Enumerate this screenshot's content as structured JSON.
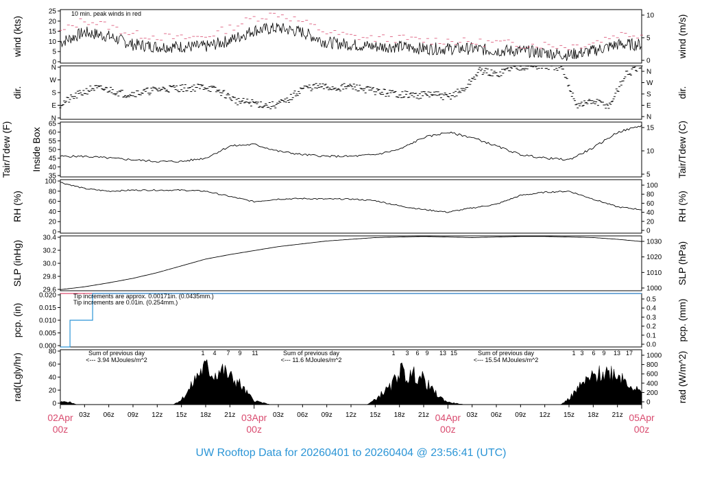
{
  "title": "UW Rooftop Data for 20260401  to  20260404 @ 23:56:41  (UTC)",
  "colors": {
    "title": "#2b95d6",
    "peak": "#d94a6e",
    "date": "#d94a6e",
    "purple": "#a020f0",
    "blue": "#2b95d6",
    "line": "#000000"
  },
  "x_axis": {
    "hour_ticks": [
      "03z",
      "06z",
      "09z",
      "12z",
      "15z",
      "18z",
      "21z",
      "03z",
      "06z",
      "09z",
      "12z",
      "15z",
      "18z",
      "21z",
      "03z",
      "06z",
      "09z",
      "12z",
      "15z",
      "18z",
      "21z"
    ],
    "date_labels": [
      {
        "date": "02Apr",
        "time": "00z"
      },
      {
        "date": "03Apr",
        "time": "00z"
      },
      {
        "date": "04Apr",
        "time": "00z"
      },
      {
        "date": "05Apr",
        "time": "00z"
      }
    ]
  },
  "chart_data": [
    {
      "id": "wind",
      "type": "line",
      "ylabel": "wind (kts)",
      "y2label": "wind (m/s)",
      "ylim": [
        0,
        26
      ],
      "yticks": [
        "0",
        "5",
        "10",
        "15",
        "20",
        "25"
      ],
      "y2ticks": [
        "0",
        "5",
        "10"
      ],
      "annotation": "10 min. peak winds in red",
      "series": [
        {
          "name": "wind",
          "color": "#000000",
          "x": [
            0,
            3,
            6,
            9,
            12,
            15,
            18,
            21,
            24,
            27,
            30,
            33,
            36,
            39,
            42,
            45,
            48,
            51,
            54,
            57,
            60,
            63,
            66,
            69,
            72
          ],
          "y": [
            10,
            15,
            13,
            9,
            8,
            8,
            8,
            11,
            16,
            17,
            15,
            10,
            9,
            8,
            8,
            7,
            7,
            7,
            6,
            6,
            5,
            4,
            6,
            9,
            9
          ]
        },
        {
          "name": "peak",
          "color": "#d94a6e",
          "x": [
            0,
            3,
            6,
            9,
            12,
            15,
            18,
            21,
            24,
            27,
            30,
            33,
            36,
            39,
            42,
            45,
            48,
            51,
            54,
            57,
            60,
            63,
            66,
            69,
            72
          ],
          "y": [
            15,
            21,
            18,
            14,
            13,
            12,
            13,
            17,
            22,
            24,
            20,
            15,
            13,
            12,
            12,
            11,
            11,
            10,
            10,
            9,
            9,
            8,
            10,
            14,
            14
          ]
        }
      ]
    },
    {
      "id": "dir",
      "type": "scatter",
      "ylabel": "dir.",
      "y2label": "dir.",
      "ylim": [
        0,
        360
      ],
      "yticks": [
        "N",
        "E",
        "S",
        "W",
        "N"
      ],
      "y2ticks": [
        "N",
        "E",
        "S",
        "W",
        "N"
      ],
      "series": [
        {
          "name": "direction",
          "x": [
            0,
            2,
            4,
            6,
            8,
            10,
            12,
            14,
            16,
            18,
            20,
            22,
            24,
            26,
            28,
            30,
            32,
            34,
            36,
            38,
            40,
            42,
            44,
            46,
            48,
            50,
            52,
            54,
            56,
            58,
            60,
            62,
            64,
            66,
            68,
            70,
            72
          ],
          "y": [
            100,
            160,
            210,
            200,
            170,
            180,
            200,
            210,
            210,
            220,
            180,
            120,
            110,
            90,
            120,
            210,
            220,
            210,
            220,
            200,
            180,
            170,
            160,
            170,
            150,
            200,
            330,
            300,
            350,
            360,
            355,
            350,
            95,
            120,
            90,
            300,
            355
          ]
        }
      ]
    },
    {
      "id": "temp",
      "type": "line",
      "ylabel": "Inside Box",
      "ylabel2": "Tair/Tdew (F)",
      "y2label": "Tair/Tdew (C)",
      "ylim": [
        35,
        67
      ],
      "yticks": [
        "35",
        "40",
        "45",
        "50",
        "55",
        "60",
        "65"
      ],
      "y2ticks": [
        "5",
        "10",
        "15"
      ],
      "series": [
        {
          "name": "air temperature",
          "color": "#000000",
          "x": [
            0,
            3,
            6,
            9,
            12,
            15,
            18,
            21,
            24,
            27,
            30,
            33,
            36,
            39,
            42,
            45,
            48,
            51,
            54,
            57,
            60,
            63,
            66,
            69,
            72
          ],
          "y": [
            47,
            47,
            46,
            45,
            44,
            44,
            46,
            53,
            54,
            50,
            48,
            47,
            47,
            48,
            51,
            58,
            61,
            58,
            53,
            48,
            46,
            45,
            52,
            61,
            65
          ]
        }
      ]
    },
    {
      "id": "rh",
      "type": "line",
      "ylabel": "RH (%)",
      "y2label": "RH (%)",
      "ylim": [
        0,
        102
      ],
      "yticks": [
        "0",
        "20",
        "40",
        "60",
        "80",
        "100"
      ],
      "y2ticks": [
        "0",
        "20",
        "40",
        "60",
        "80",
        "100"
      ],
      "series": [
        {
          "name": "relative humidity",
          "color": "#000000",
          "x": [
            0,
            3,
            6,
            9,
            12,
            15,
            18,
            21,
            24,
            27,
            30,
            33,
            36,
            39,
            42,
            45,
            48,
            51,
            54,
            57,
            60,
            63,
            66,
            69,
            72
          ],
          "y": [
            97,
            85,
            80,
            82,
            82,
            82,
            80,
            70,
            60,
            65,
            66,
            65,
            65,
            62,
            52,
            45,
            40,
            48,
            55,
            72,
            78,
            80,
            65,
            50,
            45
          ]
        }
      ]
    },
    {
      "id": "slp",
      "type": "line",
      "ylabel": "SLP (inHg)",
      "y2label": "SLP (hPa)",
      "ylim": [
        29.5,
        30.47
      ],
      "yticks": [
        "29.6",
        "29.8",
        "30.0",
        "30.2",
        "30.4"
      ],
      "y2ticks": [
        "1000",
        "1010",
        "1020",
        "1030"
      ],
      "series": [
        {
          "name": "pressure",
          "color": "#000000",
          "x": [
            0,
            3,
            6,
            9,
            12,
            15,
            18,
            21,
            24,
            27,
            30,
            33,
            36,
            39,
            42,
            45,
            48,
            51,
            54,
            57,
            60,
            63,
            66,
            69,
            72
          ],
          "y": [
            29.52,
            29.57,
            29.64,
            29.72,
            29.82,
            29.94,
            30.06,
            30.14,
            30.21,
            30.28,
            30.33,
            30.38,
            30.41,
            30.44,
            30.45,
            30.46,
            30.45,
            30.44,
            30.45,
            30.46,
            30.46,
            30.45,
            30.44,
            30.41,
            30.37
          ]
        }
      ]
    },
    {
      "id": "pcp",
      "type": "line",
      "ylabel": "pcp. (in)",
      "y2label": "pcp. (mm)",
      "ylim": [
        0,
        0.02
      ],
      "yticks": [
        "0.000",
        "0.005",
        "0.010",
        "0.015",
        "0.020"
      ],
      "y2ticks": [
        "0.0",
        "0.1",
        "0.2",
        "0.3",
        "0.4",
        "0.5"
      ],
      "annotations": [
        "Tip increments are approx. 0.00171in. (0.0435mm.)",
        "Tip increments are 0.01in. (0.254mm.)"
      ],
      "series": [
        {
          "name": "precipitation 0.00171in",
          "color": "#d94a6e",
          "x": [
            0,
            72
          ],
          "y": [
            0.02,
            0.02
          ]
        },
        {
          "name": "precipitation 0.01in",
          "color": "#2b95d6",
          "x": [
            0,
            1.2,
            1.2,
            4,
            4,
            72
          ],
          "y": [
            0,
            0,
            0.01,
            0.01,
            0.02,
            0.02
          ]
        }
      ]
    },
    {
      "id": "rad",
      "type": "area",
      "ylabel": "rad(Lgly/hr)",
      "y2label": "rad (W/m^2)",
      "ylim": [
        0,
        88
      ],
      "yticks": [
        "0",
        "20",
        "40",
        "60",
        "80"
      ],
      "y2ticks": [
        "0",
        "200",
        "400",
        "600",
        "800",
        "1000"
      ],
      "series": [
        {
          "name": "radiation",
          "color": "#000000",
          "x": [
            0,
            1,
            2,
            14,
            15,
            16,
            17,
            18,
            19,
            20,
            21,
            22,
            23,
            24,
            26,
            38,
            39,
            40,
            41,
            42,
            43,
            44,
            45,
            46,
            47,
            48,
            50,
            62,
            63,
            64,
            65,
            66,
            67,
            68,
            69,
            70,
            71,
            72
          ],
          "y": [
            5,
            6,
            0,
            0,
            10,
            30,
            60,
            75,
            60,
            70,
            55,
            45,
            25,
            8,
            0,
            0,
            10,
            25,
            35,
            70,
            55,
            60,
            50,
            30,
            15,
            5,
            0,
            0,
            12,
            30,
            45,
            55,
            62,
            66,
            62,
            50,
            35,
            22
          ]
        }
      ],
      "day_sums": [
        {
          "label": "Sum of previous day",
          "value": "<--- 3.94 MJoules/m^2"
        },
        {
          "label": "Sum of previous day",
          "value": "<--- 11.6 MJoules/m^2"
        },
        {
          "label": "Sum of previous day",
          "value": "<--- 15.54 MJoules/m^2"
        }
      ],
      "hour_marks": [
        [
          "1",
          "4",
          "7",
          "9",
          "11"
        ],
        [
          "1",
          "3",
          "6",
          "9",
          "13",
          "15"
        ],
        [
          "1",
          "3",
          "6",
          "9",
          "13",
          "17"
        ]
      ]
    }
  ]
}
